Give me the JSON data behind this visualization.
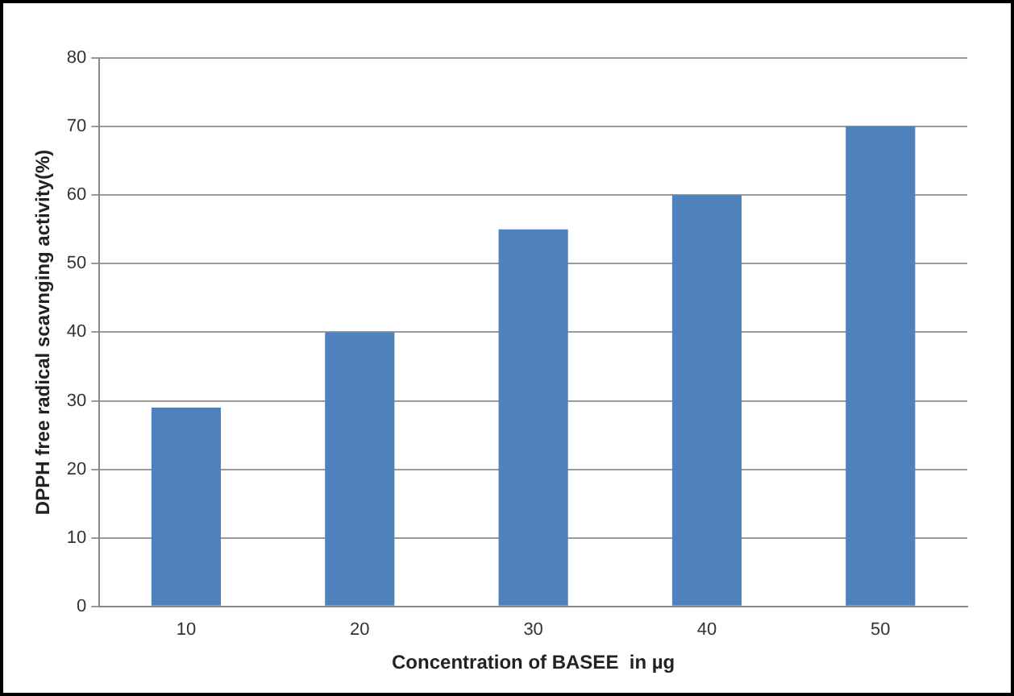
{
  "chart_data": {
    "type": "bar",
    "xlabel": "Concentration of BASEE  in µg",
    "ylabel": "DPPH free radical scavnging activity(%)",
    "categories": [
      "10",
      "20",
      "30",
      "40",
      "50"
    ],
    "values": [
      29,
      40,
      55,
      60,
      70
    ],
    "color": "#4f81bd",
    "ylim": [
      0,
      80
    ],
    "yticks": [
      0,
      10,
      20,
      30,
      40,
      50,
      60,
      70,
      80
    ],
    "grid": "y",
    "legend": false
  }
}
